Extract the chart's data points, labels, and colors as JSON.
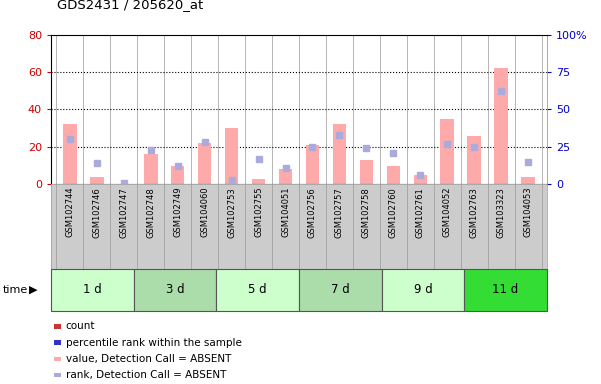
{
  "title": "GDS2431 / 205620_at",
  "samples": [
    "GSM102744",
    "GSM102746",
    "GSM102747",
    "GSM102748",
    "GSM102749",
    "GSM104060",
    "GSM102753",
    "GSM102755",
    "GSM104051",
    "GSM102756",
    "GSM102757",
    "GSM102758",
    "GSM102760",
    "GSM102761",
    "GSM104052",
    "GSM102763",
    "GSM103323",
    "GSM104053"
  ],
  "groups": [
    {
      "label": "1 d",
      "count": 3,
      "color": "#ccffcc"
    },
    {
      "label": "3 d",
      "count": 3,
      "color": "#aaddaa"
    },
    {
      "label": "5 d",
      "count": 3,
      "color": "#ccffcc"
    },
    {
      "label": "7 d",
      "count": 3,
      "color": "#aaddaa"
    },
    {
      "label": "9 d",
      "count": 3,
      "color": "#ccffcc"
    },
    {
      "label": "11 d",
      "count": 3,
      "color": "#33dd33"
    }
  ],
  "bar_values": [
    32,
    4,
    0,
    16,
    10,
    22,
    30,
    3,
    8,
    21,
    32,
    13,
    10,
    5,
    35,
    26,
    62,
    4
  ],
  "absent_flags": [
    false,
    true,
    true,
    false,
    false,
    false,
    false,
    true,
    false,
    false,
    false,
    true,
    false,
    true,
    false,
    false,
    false,
    true
  ],
  "rank_values": [
    30,
    14,
    1,
    23,
    12,
    28,
    3,
    17,
    11,
    25,
    33,
    24,
    21,
    6,
    27,
    25,
    62,
    15
  ],
  "bar_color_present": "#ffaaaa",
  "bar_color_absent": "#ffaaaa",
  "rank_color_present": "#8888cc",
  "rank_color_absent": "#aaaadd",
  "ylim_left": [
    0,
    80
  ],
  "ylim_right": [
    0,
    100
  ],
  "yticks_left": [
    0,
    20,
    40,
    60,
    80
  ],
  "yticks_right": [
    0,
    25,
    50,
    75,
    100
  ],
  "ytick_labels_right": [
    "0",
    "25",
    "50",
    "75",
    "100%"
  ],
  "grid_values": [
    20,
    40,
    60
  ],
  "bar_width": 0.5,
  "tick_color_left": "#cc0000",
  "tick_color_right": "#0000cc",
  "legend": [
    {
      "label": "count",
      "color": "#cc3333"
    },
    {
      "label": "percentile rank within the sample",
      "color": "#3333cc"
    },
    {
      "label": "value, Detection Call = ABSENT",
      "color": "#ffaaaa"
    },
    {
      "label": "rank, Detection Call = ABSENT",
      "color": "#aaaadd"
    }
  ]
}
